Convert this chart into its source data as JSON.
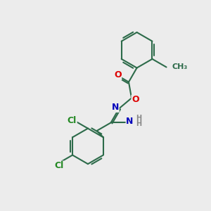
{
  "bg_color": "#ececec",
  "bond_color": "#2d6b4a",
  "lw": 1.5,
  "dbo": 0.07,
  "shrink": 0.18,
  "atom_colors": {
    "O": "#dd0000",
    "N": "#0000bb",
    "Cl": "#228822",
    "C": "#2d6b4a",
    "H": "#888888"
  },
  "fs": 9,
  "sfs": 7
}
